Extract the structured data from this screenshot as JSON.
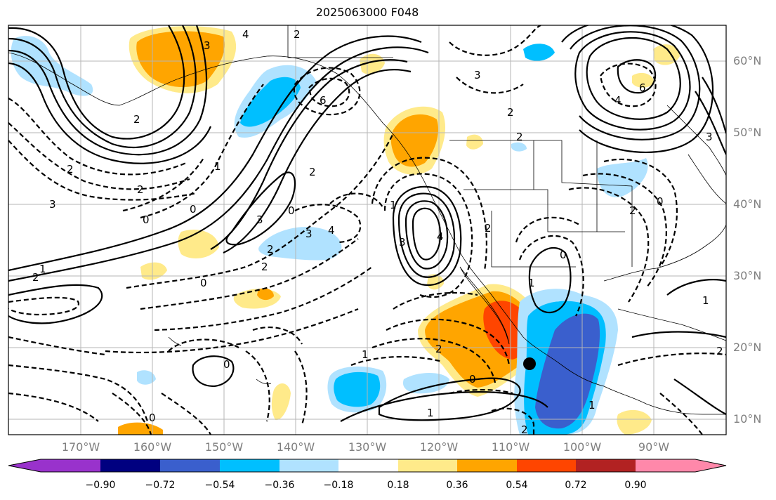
{
  "title": "2025063000 F048",
  "lat_labels": [
    "60°N",
    "50°N",
    "40°N",
    "30°N",
    "20°N",
    "10°N"
  ],
  "lon_labels": [
    "170°W",
    "160°W",
    "150°W",
    "140°W",
    "130°W",
    "120°W",
    "110°W",
    "100°W",
    "90°W"
  ],
  "colorbar": {
    "ticks": [
      "−0.90",
      "−0.72",
      "−0.54",
      "−0.36",
      "−0.18",
      "0.18",
      "0.36",
      "0.54",
      "0.72",
      "0.90"
    ],
    "colors": [
      "#9932cc",
      "#000080",
      "#3a5fcd",
      "#00bfff",
      "#b0e2ff",
      "#ffffff",
      "#ffea8a",
      "#ffa500",
      "#ff4500",
      "#b22222",
      "#ff88aa"
    ]
  },
  "contour_labels": [
    "4",
    "2",
    "3",
    "6",
    "2",
    "3",
    "1",
    "2",
    "2",
    "3",
    "0",
    "2",
    "3",
    "0",
    "3",
    "4",
    "2",
    "2",
    "0",
    "1",
    "2",
    "0",
    "4",
    "3",
    "1",
    "2",
    "0",
    "1",
    "2",
    "1",
    "6",
    "4",
    "2",
    "3",
    "0",
    "2",
    "2",
    "1",
    "1",
    "0",
    "0",
    "2",
    "1",
    "0",
    "2"
  ],
  "marker": "storm-center-dot"
}
